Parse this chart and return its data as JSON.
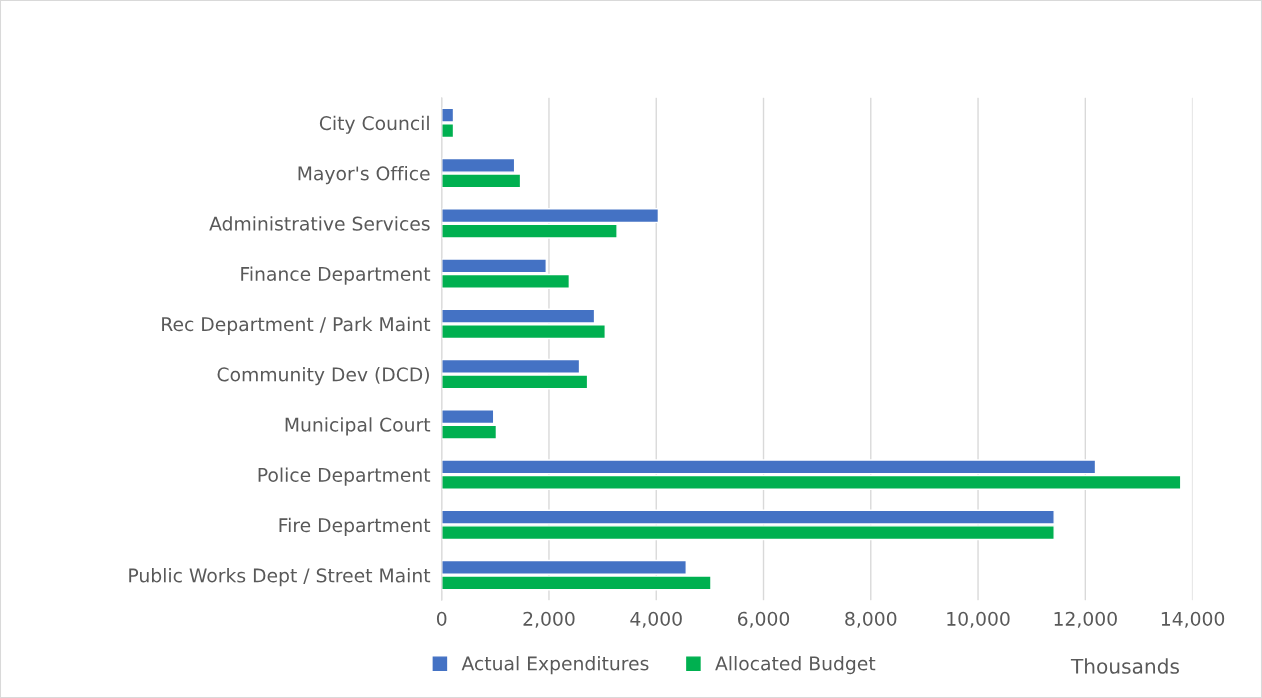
{
  "chart_data": {
    "type": "bar",
    "orientation": "horizontal",
    "xlabel": "Thousands",
    "categories": [
      "City Council",
      "Mayor's Office",
      "Administrative Services",
      "Finance Department",
      "Rec Department / Park Maint",
      "Community Dev (DCD)",
      "Municipal Court",
      "Police Department",
      "Fire Department",
      "Public Works Dept / Street Maint"
    ],
    "series": [
      {
        "name": "Actual Expenditures",
        "color": "#4472c4",
        "values": [
          220,
          1360,
          4040,
          1950,
          2850,
          2570,
          970,
          12190,
          11420,
          4560
        ]
      },
      {
        "name": "Allocated Budget",
        "color": "#00b050",
        "values": [
          220,
          1470,
          3270,
          2380,
          3050,
          2720,
          1020,
          13780,
          11420,
          5020
        ]
      }
    ],
    "xlim": [
      0,
      14000
    ],
    "xticks": [
      0,
      {
        "value": 2000,
        "label": "2,000"
      },
      {
        "value": 4000,
        "label": "4,000"
      },
      {
        "value": 6000,
        "label": "6,000"
      },
      {
        "value": 8000,
        "label": "8,000"
      },
      {
        "value": 10000,
        "label": "10,000"
      },
      {
        "value": 12000,
        "label": "12,000"
      },
      {
        "value": 14000,
        "label": "14,000"
      }
    ],
    "grid": "x",
    "legend": "bottom left"
  }
}
